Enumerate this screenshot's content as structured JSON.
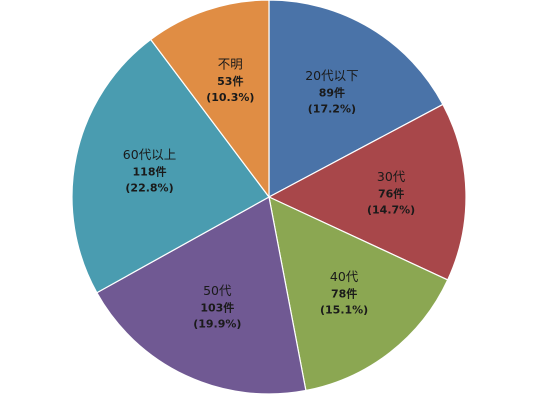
{
  "chart_data": {
    "type": "pie",
    "slices": [
      {
        "label": "20代以下",
        "value": 89,
        "count_label": "89件",
        "percent_label": "(17.2%)",
        "color": "#4A73A8"
      },
      {
        "label": "30代",
        "value": 76,
        "count_label": "76件",
        "percent_label": "(14.7%)",
        "color": "#A8474A"
      },
      {
        "label": "40代",
        "value": 78,
        "count_label": "78件",
        "percent_label": "(15.1%)",
        "color": "#8BA752"
      },
      {
        "label": "50代",
        "value": 103,
        "count_label": "103件",
        "percent_label": "(19.9%)",
        "color": "#705993"
      },
      {
        "label": "60代以上",
        "value": 118,
        "count_label": "118件",
        "percent_label": "(22.8%)",
        "color": "#4A9CB0"
      },
      {
        "label": "不明",
        "value": 53,
        "count_label": "53件",
        "percent_label": "(10.3%)",
        "color": "#E08D44"
      }
    ],
    "start_angle": "12 o'clock",
    "direction": "clockwise",
    "legend": "none"
  }
}
